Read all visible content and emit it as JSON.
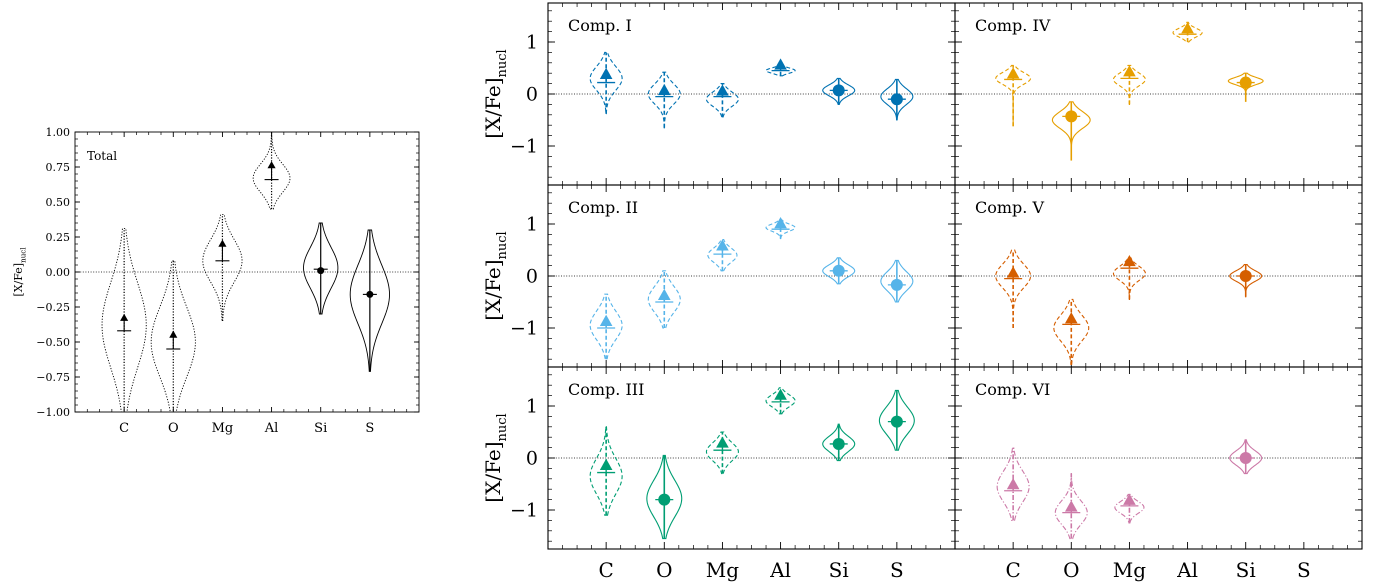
{
  "figure": {
    "elements": [
      "C",
      "O",
      "Mg",
      "Al",
      "Si",
      "S"
    ],
    "ylabel_base": "[X/Fe]",
    "ylabel_sub": "nucl"
  },
  "chart_data": [
    {
      "type": "violin",
      "panel": "total",
      "title": "Total",
      "ylim": [
        -1.0,
        1.0
      ],
      "yticks": [
        -1.0,
        -0.75,
        -0.5,
        -0.25,
        0.0,
        0.25,
        0.5,
        0.75,
        1.0
      ],
      "ytick_labels": [
        "−1.00",
        "−0.75",
        "−0.50",
        "−0.25",
        "0.00",
        "0.25",
        "0.50",
        "0.75",
        "1.00"
      ],
      "color": "#000000",
      "points": [
        {
          "element": "C",
          "marker": "triangle",
          "value": -0.33,
          "median": -0.42,
          "violin_center": -0.38,
          "range": [
            -1.05,
            0.31
          ],
          "width": 0.9,
          "style": "dotted"
        },
        {
          "element": "O",
          "marker": "triangle",
          "value": -0.45,
          "median": -0.55,
          "violin_center": -0.5,
          "range": [
            -1.05,
            0.08
          ],
          "width": 0.9,
          "style": "dotted"
        },
        {
          "element": "Mg",
          "marker": "triangle",
          "value": 0.2,
          "median": 0.08,
          "violin_center": 0.08,
          "range": [
            -0.35,
            0.41
          ],
          "width": 0.8,
          "style": "dotted"
        },
        {
          "element": "Al",
          "marker": "triangle",
          "value": 0.76,
          "median": 0.66,
          "violin_center": 0.67,
          "range": [
            0.45,
            1.0
          ],
          "width": 0.75,
          "style": "dotted"
        },
        {
          "element": "Si",
          "marker": "circle",
          "value": 0.01,
          "median": 0.02,
          "violin_center": 0.03,
          "range": [
            -0.3,
            0.35
          ],
          "width": 0.7,
          "style": "solid"
        },
        {
          "element": "S",
          "marker": "circle",
          "value": -0.16,
          "median": -0.16,
          "violin_center": -0.16,
          "range": [
            -0.71,
            0.3
          ],
          "width": 0.8,
          "style": "solid"
        }
      ]
    },
    {
      "type": "violin",
      "panel": "comp1",
      "title": "Comp. I",
      "ylim": [
        -1.75,
        1.75
      ],
      "yticks": [
        -1,
        0,
        1
      ],
      "ytick_labels": [
        "−1",
        "0",
        "1"
      ],
      "color": "#0072B2",
      "points": [
        {
          "element": "C",
          "marker": "triangle",
          "value": 0.37,
          "median": 0.22,
          "violin_center": 0.3,
          "range": [
            -0.38,
            0.8
          ],
          "width": 0.55,
          "style": "dashed"
        },
        {
          "element": "O",
          "marker": "triangle",
          "value": 0.06,
          "median": -0.05,
          "violin_center": 0.0,
          "range": [
            -0.65,
            0.42
          ],
          "width": 0.55,
          "style": "dashed"
        },
        {
          "element": "Mg",
          "marker": "triangle",
          "value": 0.05,
          "median": -0.05,
          "violin_center": -0.1,
          "range": [
            -0.45,
            0.2
          ],
          "width": 0.55,
          "style": "dashed"
        },
        {
          "element": "Al",
          "marker": "triangle",
          "value": 0.55,
          "median": 0.45,
          "violin_center": 0.45,
          "range": [
            0.35,
            0.62
          ],
          "width": 0.5,
          "style": "dashed"
        },
        {
          "element": "Si",
          "marker": "circle",
          "value": 0.07,
          "median": 0.07,
          "violin_center": 0.07,
          "range": [
            -0.2,
            0.3
          ],
          "width": 0.55,
          "style": "solid"
        },
        {
          "element": "S",
          "marker": "circle",
          "value": -0.1,
          "median": -0.1,
          "violin_center": -0.05,
          "range": [
            -0.5,
            0.28
          ],
          "width": 0.55,
          "style": "solid"
        }
      ]
    },
    {
      "type": "violin",
      "panel": "comp2",
      "title": "Comp. II",
      "ylim": [
        -1.75,
        1.75
      ],
      "yticks": [
        -1,
        0,
        1
      ],
      "ytick_labels": [
        "−1",
        "0",
        "1"
      ],
      "color": "#56B4E9",
      "points": [
        {
          "element": "C",
          "marker": "triangle",
          "value": -0.88,
          "median": -1.0,
          "violin_center": -0.95,
          "range": [
            -1.6,
            -0.35
          ],
          "width": 0.55,
          "style": "dashed"
        },
        {
          "element": "O",
          "marker": "triangle",
          "value": -0.38,
          "median": -0.5,
          "violin_center": -0.45,
          "range": [
            -1.0,
            0.1
          ],
          "width": 0.55,
          "style": "dashed"
        },
        {
          "element": "Mg",
          "marker": "triangle",
          "value": 0.57,
          "median": 0.42,
          "violin_center": 0.4,
          "range": [
            0.1,
            0.7
          ],
          "width": 0.5,
          "style": "dashed"
        },
        {
          "element": "Al",
          "marker": "triangle",
          "value": 1.0,
          "median": 0.9,
          "violin_center": 0.93,
          "range": [
            0.72,
            1.08
          ],
          "width": 0.5,
          "style": "dashed"
        },
        {
          "element": "Si",
          "marker": "circle",
          "value": 0.1,
          "median": 0.1,
          "violin_center": 0.1,
          "range": [
            -0.15,
            0.35
          ],
          "width": 0.55,
          "style": "solid"
        },
        {
          "element": "S",
          "marker": "circle",
          "value": -0.17,
          "median": -0.17,
          "violin_center": -0.1,
          "range": [
            -0.5,
            0.3
          ],
          "width": 0.55,
          "style": "solid"
        }
      ]
    },
    {
      "type": "violin",
      "panel": "comp3",
      "title": "Comp. III",
      "ylim": [
        -1.75,
        1.75
      ],
      "yticks": [
        -1,
        0,
        1
      ],
      "ytick_labels": [
        "−1",
        "0",
        "1"
      ],
      "color": "#009E73",
      "points": [
        {
          "element": "C",
          "marker": "triangle",
          "value": -0.15,
          "median": -0.28,
          "violin_center": -0.35,
          "range": [
            -1.1,
            0.6
          ],
          "width": 0.55,
          "style": "dashed"
        },
        {
          "element": "O",
          "marker": "circle",
          "value": -0.8,
          "median": -0.8,
          "violin_center": -0.78,
          "range": [
            -1.55,
            0.05
          ],
          "width": 0.6,
          "style": "solid"
        },
        {
          "element": "Mg",
          "marker": "triangle",
          "value": 0.28,
          "median": 0.15,
          "violin_center": 0.12,
          "range": [
            -0.3,
            0.5
          ],
          "width": 0.55,
          "style": "dashed"
        },
        {
          "element": "Al",
          "marker": "triangle",
          "value": 1.2,
          "median": 1.08,
          "violin_center": 1.1,
          "range": [
            0.85,
            1.35
          ],
          "width": 0.5,
          "style": "dashed"
        },
        {
          "element": "Si",
          "marker": "circle",
          "value": 0.27,
          "median": 0.27,
          "violin_center": 0.27,
          "range": [
            -0.05,
            0.65
          ],
          "width": 0.55,
          "style": "solid"
        },
        {
          "element": "S",
          "marker": "circle",
          "value": 0.7,
          "median": 0.7,
          "violin_center": 0.72,
          "range": [
            0.15,
            1.3
          ],
          "width": 0.6,
          "style": "solid"
        }
      ]
    },
    {
      "type": "violin",
      "panel": "comp4",
      "title": "Comp. IV",
      "ylim": [
        -1.75,
        1.75
      ],
      "yticks": [
        -1,
        0,
        1
      ],
      "ytick_labels": [
        "−1",
        "0",
        "1"
      ],
      "color": "#E69F00",
      "points": [
        {
          "element": "C",
          "marker": "triangle",
          "value": 0.38,
          "median": 0.28,
          "violin_center": 0.3,
          "range": [
            -0.62,
            0.55
          ],
          "width": 0.6,
          "style": "dashed"
        },
        {
          "element": "O",
          "marker": "circle",
          "value": -0.43,
          "median": -0.43,
          "violin_center": -0.5,
          "range": [
            -1.28,
            -0.15
          ],
          "width": 0.65,
          "style": "solid"
        },
        {
          "element": "Mg",
          "marker": "triangle",
          "value": 0.42,
          "median": 0.3,
          "violin_center": 0.28,
          "range": [
            -0.2,
            0.55
          ],
          "width": 0.55,
          "style": "dashed"
        },
        {
          "element": "Al",
          "marker": "triangle",
          "value": 1.25,
          "median": 1.15,
          "violin_center": 1.18,
          "range": [
            1.0,
            1.38
          ],
          "width": 0.5,
          "style": "dashed"
        },
        {
          "element": "Si",
          "marker": "circle",
          "value": 0.22,
          "median": 0.22,
          "violin_center": 0.25,
          "range": [
            -0.15,
            0.4
          ],
          "width": 0.6,
          "style": "solid"
        }
      ]
    },
    {
      "type": "violin",
      "panel": "comp5",
      "title": "Comp. V",
      "ylim": [
        -1.75,
        1.75
      ],
      "yticks": [
        -1,
        0,
        1
      ],
      "ytick_labels": [
        "−1",
        "0",
        "1"
      ],
      "color": "#D55E00",
      "points": [
        {
          "element": "C",
          "marker": "triangle",
          "value": 0.05,
          "median": -0.05,
          "violin_center": 0.0,
          "range": [
            -1.0,
            0.5
          ],
          "width": 0.6,
          "style": "dashed"
        },
        {
          "element": "O",
          "marker": "triangle",
          "value": -0.83,
          "median": -0.93,
          "violin_center": -1.0,
          "range": [
            -1.7,
            -0.45
          ],
          "width": 0.6,
          "style": "dashed"
        },
        {
          "element": "Mg",
          "marker": "triangle",
          "value": 0.27,
          "median": 0.15,
          "violin_center": 0.05,
          "range": [
            -0.45,
            0.35
          ],
          "width": 0.55,
          "style": "dashed"
        },
        {
          "element": "Si",
          "marker": "circle",
          "value": 0.0,
          "median": 0.0,
          "violin_center": 0.0,
          "range": [
            -0.4,
            0.22
          ],
          "width": 0.55,
          "style": "solid"
        }
      ]
    },
    {
      "type": "violin",
      "panel": "comp6",
      "title": "Comp. VI",
      "ylim": [
        -1.75,
        1.75
      ],
      "yticks": [
        -1,
        0,
        1
      ],
      "ytick_labels": [
        "−1",
        "0",
        "1"
      ],
      "color": "#CC79A7",
      "points": [
        {
          "element": "C",
          "marker": "triangle",
          "value": -0.52,
          "median": -0.63,
          "violin_center": -0.55,
          "range": [
            -1.2,
            0.2
          ],
          "width": 0.55,
          "style": "dashdot"
        },
        {
          "element": "O",
          "marker": "triangle",
          "value": -0.95,
          "median": -1.05,
          "violin_center": -1.05,
          "range": [
            -1.55,
            -0.3
          ],
          "width": 0.55,
          "style": "dashdot"
        },
        {
          "element": "Mg",
          "marker": "triangle",
          "value": -0.82,
          "median": -0.92,
          "violin_center": -0.95,
          "range": [
            -1.25,
            -0.7
          ],
          "width": 0.5,
          "style": "dashdot"
        },
        {
          "element": "Si",
          "marker": "circle",
          "value": 0.0,
          "median": 0.0,
          "violin_center": 0.0,
          "range": [
            -0.3,
            0.35
          ],
          "width": 0.55,
          "style": "solid"
        }
      ]
    }
  ]
}
